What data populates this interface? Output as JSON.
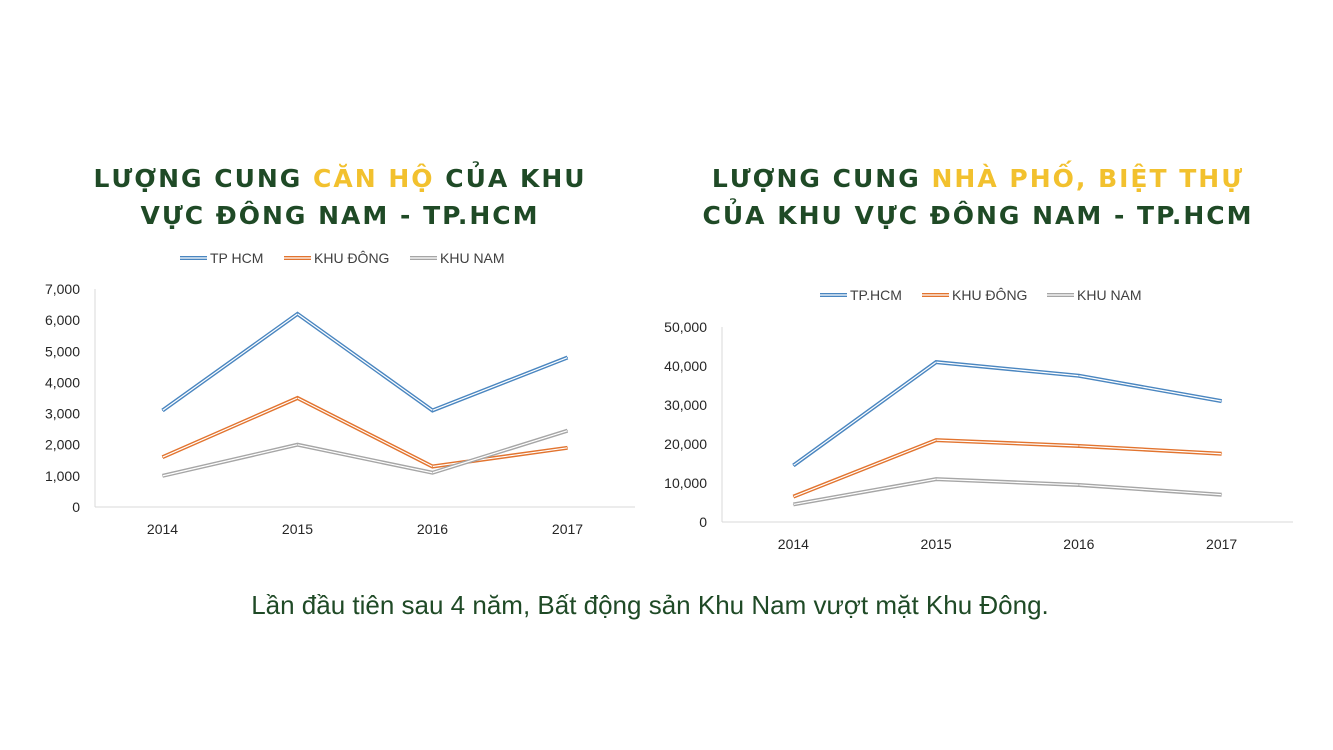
{
  "colors": {
    "title": "#1f4a26",
    "highlight": "#f2c12e",
    "series": [
      "#4a86c0",
      "#e2742f",
      "#a6a6a6"
    ]
  },
  "chart_data": [
    {
      "type": "line",
      "title_parts": [
        "LƯỢNG CUNG ",
        "CĂN HỘ",
        " CỦA KHU VỰC ĐÔNG NAM - TP.HCM"
      ],
      "categories": [
        "2014",
        "2015",
        "2016",
        "2017"
      ],
      "series": [
        {
          "name": "TP HCM",
          "values": [
            3100,
            6200,
            3100,
            4800
          ]
        },
        {
          "name": "KHU ĐÔNG",
          "values": [
            1600,
            3500,
            1300,
            1900
          ]
        },
        {
          "name": "KHU NAM",
          "values": [
            1000,
            2000,
            1100,
            2450
          ]
        }
      ],
      "ylim": [
        0,
        7000
      ],
      "yticks": [
        "0",
        "1,000",
        "2,000",
        "3,000",
        "4,000",
        "5,000",
        "6,000",
        "7,000"
      ],
      "legend": "top",
      "grid": false
    },
    {
      "type": "line",
      "title_parts": [
        "LƯỢNG CUNG ",
        "NHÀ PHỐ, BIỆT THỰ",
        " CỦA KHU VỰC ĐÔNG NAM - TP.HCM"
      ],
      "categories": [
        "2014",
        "2015",
        "2016",
        "2017"
      ],
      "series": [
        {
          "name": "TP.HCM",
          "values": [
            14500,
            41000,
            37500,
            31000
          ]
        },
        {
          "name": "KHU ĐÔNG",
          "values": [
            6500,
            21000,
            19500,
            17500
          ]
        },
        {
          "name": "KHU NAM",
          "values": [
            4500,
            11000,
            9500,
            7000
          ]
        }
      ],
      "ylim": [
        0,
        50000
      ],
      "yticks": [
        "0",
        "10,000",
        "20,000",
        "30,000",
        "40,000",
        "50,000"
      ],
      "legend": "top",
      "grid": false
    }
  ],
  "caption": "Lần đầu tiên sau 4 năm, Bất động sản Khu Nam vượt mặt Khu Đông."
}
